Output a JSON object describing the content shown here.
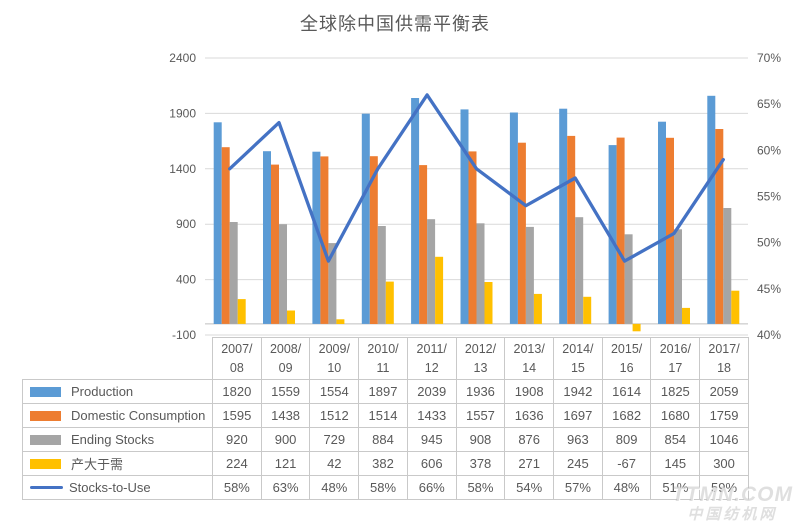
{
  "title": "全球除中国供需平衡表",
  "watermark": {
    "line1": "TTMN.COM",
    "line2": "中国纺机网"
  },
  "colors": {
    "production": "#5B9BD5",
    "domestic_consumption": "#ED7D31",
    "ending_stocks": "#A5A5A5",
    "surplus": "#FFC000",
    "stocks_to_use_line": "#4472C4",
    "gridline": "#D9D9D9",
    "axis_line": "#BFBFBF",
    "axis_text": "#595959",
    "table_border": "#C9C9C9"
  },
  "chart_data": {
    "type": "bar",
    "subtype": "combo-bar-line-dual-axis",
    "title": "全球除中国供需平衡表",
    "categories": [
      "2007/08",
      "2008/09",
      "2009/10",
      "2010/11",
      "2011/12",
      "2012/13",
      "2013/14",
      "2014/15",
      "2015/16",
      "2016/17",
      "2017/18"
    ],
    "series": [
      {
        "name": "Production",
        "render": "bar",
        "axis": "left",
        "color": "#5B9BD5",
        "values": [
          1820,
          1559,
          1554,
          1897,
          2039,
          1936,
          1908,
          1942,
          1614,
          1825,
          2059
        ]
      },
      {
        "name": "Domestic Consumption",
        "render": "bar",
        "axis": "left",
        "color": "#ED7D31",
        "values": [
          1595,
          1438,
          1512,
          1514,
          1433,
          1557,
          1636,
          1697,
          1682,
          1680,
          1759
        ]
      },
      {
        "name": "Ending Stocks",
        "render": "bar",
        "axis": "left",
        "color": "#A5A5A5",
        "values": [
          920,
          900,
          729,
          884,
          945,
          908,
          876,
          963,
          809,
          854,
          1046
        ]
      },
      {
        "name": "产大于需",
        "render": "bar",
        "axis": "left",
        "color": "#FFC000",
        "values": [
          224,
          121,
          42,
          382,
          606,
          378,
          271,
          245,
          -67,
          145,
          300
        ]
      },
      {
        "name": "Stocks-to-Use",
        "render": "line",
        "axis": "right",
        "color": "#4472C4",
        "values": [
          58,
          63,
          48,
          58,
          66,
          58,
          54,
          57,
          48,
          51,
          59
        ],
        "unit": "%"
      }
    ],
    "left_axis": {
      "min": -100,
      "max": 2400,
      "ticks": [
        2400,
        1900,
        1400,
        900,
        400,
        -100
      ]
    },
    "right_axis": {
      "min": 40,
      "max": 70,
      "tick_labels": [
        "70%",
        "65%",
        "60%",
        "55%",
        "50%",
        "45%",
        "40%"
      ]
    },
    "grid": true,
    "legend_position": "data-table-left-column"
  }
}
